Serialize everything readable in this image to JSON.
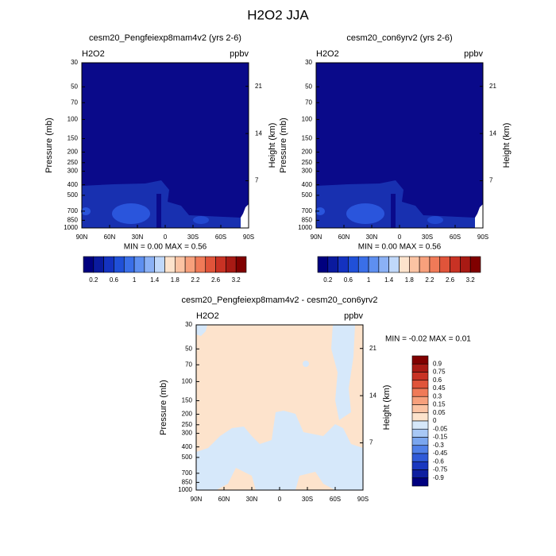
{
  "title": "H2O2 JJA",
  "chart_data": [
    {
      "type": "contour",
      "title": "cesm20_Pengfeiexp8mam4v2 (yrs 2-6)",
      "left_label": "H2O2",
      "right_label": "ppbv",
      "ylabel": "Pressure (mb)",
      "y2label": "Height (km)",
      "stats": "MIN =   0.00  MAX =   0.56",
      "xlim": [
        90,
        -90
      ],
      "xticks": [
        {
          "value": 90,
          "label": "90N"
        },
        {
          "value": 60,
          "label": "60N"
        },
        {
          "value": 30,
          "label": "30N"
        },
        0,
        {
          "value": -30,
          "label": "30S"
        },
        {
          "value": -60,
          "label": "60S"
        },
        {
          "value": -90,
          "label": "90S"
        }
      ],
      "ylim": [
        1000,
        30
      ],
      "ylog": true,
      "yticks": [
        30,
        50,
        70,
        100,
        150,
        200,
        250,
        300,
        400,
        500,
        700,
        850,
        1000
      ],
      "y2lim": [
        0,
        24.5
      ],
      "y2ticks": [
        7,
        14,
        21
      ],
      "colorbar": {
        "orientation": "horizontal",
        "labels": [
          0.2,
          0.6,
          1,
          1.4,
          1.8,
          2.2,
          2.6,
          3.2
        ],
        "colors": [
          "#00007f",
          "#0a1a9e",
          "#1432c0",
          "#2050d8",
          "#3a6fe8",
          "#5e8ff0",
          "#8bb1f5",
          "#c0d8fa",
          "#fde3cc",
          "#fbc3a3",
          "#f7a07c",
          "#f07a58",
          "#e0543a",
          "#c83224",
          "#a81a14",
          "#800000"
        ]
      }
    },
    {
      "type": "contour",
      "title": "cesm20_con6yrv2 (yrs 2-6)",
      "left_label": "H2O2",
      "right_label": "ppbv",
      "ylabel": "Pressure (mb)",
      "y2label": "Height (km)",
      "stats": "MIN =   0.00  MAX =   0.56",
      "xlim": [
        90,
        -90
      ],
      "xticks": [
        {
          "value": 90,
          "label": "90N"
        },
        {
          "value": 60,
          "label": "60N"
        },
        {
          "value": 30,
          "label": "30N"
        },
        0,
        {
          "value": -30,
          "label": "30S"
        },
        {
          "value": -60,
          "label": "60S"
        },
        {
          "value": -90,
          "label": "90S"
        }
      ],
      "ylim": [
        1000,
        30
      ],
      "ylog": true,
      "yticks": [
        30,
        50,
        70,
        100,
        150,
        200,
        250,
        300,
        400,
        500,
        700,
        850,
        1000
      ],
      "y2lim": [
        0,
        24.5
      ],
      "y2ticks": [
        7,
        14,
        21
      ],
      "colorbar": {
        "orientation": "horizontal",
        "labels": [
          0.2,
          0.6,
          1,
          1.4,
          1.8,
          2.2,
          2.6,
          3.2
        ],
        "colors": [
          "#00007f",
          "#0a1a9e",
          "#1432c0",
          "#2050d8",
          "#3a6fe8",
          "#5e8ff0",
          "#8bb1f5",
          "#c0d8fa",
          "#fde3cc",
          "#fbc3a3",
          "#f7a07c",
          "#f07a58",
          "#e0543a",
          "#c83224",
          "#a81a14",
          "#800000"
        ]
      }
    },
    {
      "type": "contour",
      "title": "cesm20_Pengfeiexp8mam4v2 - cesm20_con6yrv2",
      "left_label": "H2O2",
      "right_label": "ppbv",
      "ylabel": "Pressure (mb)",
      "y2label": "Height (km)",
      "stats": "MIN =  -0.02  MAX =   0.01",
      "xlim": [
        90,
        -90
      ],
      "xticks": [
        {
          "value": 90,
          "label": "90N"
        },
        {
          "value": 60,
          "label": "60N"
        },
        {
          "value": 30,
          "label": "30N"
        },
        0,
        {
          "value": -30,
          "label": "30S"
        },
        {
          "value": -60,
          "label": "60S"
        },
        {
          "value": -90,
          "label": "90S"
        }
      ],
      "ylim": [
        1000,
        30
      ],
      "ylog": true,
      "yticks": [
        30,
        50,
        70,
        100,
        150,
        200,
        250,
        300,
        400,
        500,
        700,
        850,
        1000
      ],
      "y2lim": [
        0,
        24.5
      ],
      "y2ticks": [
        7,
        14,
        21
      ],
      "colorbar": {
        "orientation": "vertical",
        "labels": [
          0.9,
          0.75,
          0.6,
          0.45,
          0.3,
          0.15,
          0.05,
          0,
          -0.05,
          -0.15,
          -0.3,
          -0.45,
          -0.6,
          -0.75,
          -0.9
        ],
        "colors": [
          "#800000",
          "#a81a14",
          "#c83224",
          "#e0543a",
          "#f07a58",
          "#f7a07c",
          "#fbc3a3",
          "#fde3cc",
          "#d6e8fa",
          "#a8c8f5",
          "#7aa6ef",
          "#5080e8",
          "#2f5ad8",
          "#1a38bf",
          "#0e1fa0",
          "#00007f"
        ]
      }
    }
  ]
}
